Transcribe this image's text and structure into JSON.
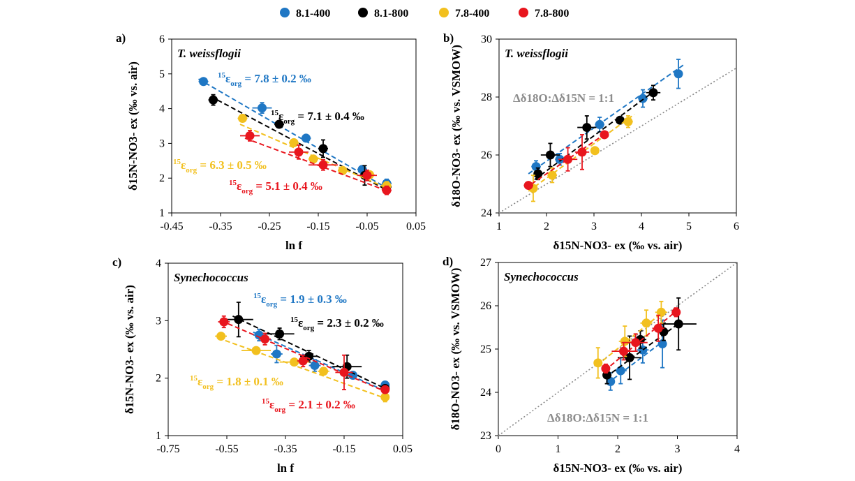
{
  "legend": [
    {
      "name": "8.1-400",
      "color": "#1f77c4"
    },
    {
      "name": "8.1-800",
      "color": "#000000"
    },
    {
      "name": "7.8-400",
      "color": "#f2c01e"
    },
    {
      "name": "7.8-800",
      "color": "#e8161e"
    }
  ],
  "chart_data": [
    {
      "panel": "a)",
      "title": "T. weissflogii",
      "type": "scatter",
      "xlabel": "ln f",
      "ylabel": "δ15N-NO3- ex (‰ vs. air)",
      "xlim": [
        -0.45,
        0.05
      ],
      "ylim": [
        1,
        6
      ],
      "xticks": [
        "-0.45",
        "-0.35",
        "-0.25",
        "-0.15",
        "-0.05",
        "0.05"
      ],
      "yticks": [
        "1",
        "2",
        "3",
        "4",
        "5",
        "6"
      ],
      "series": [
        {
          "name": "8.1-400",
          "color": "#1f77c4",
          "points": [
            [
              -0.385,
              4.78,
              0.01,
              0.05
            ],
            [
              -0.265,
              4.02,
              0.02,
              0.15
            ],
            [
              -0.175,
              3.15,
              0.01,
              0.05
            ],
            [
              -0.06,
              2.25,
              0.01,
              0.1
            ],
            [
              -0.01,
              1.85,
              0.01,
              0.12
            ]
          ],
          "fit": [
            [
              -0.395,
              4.85
            ],
            [
              -0.01,
              1.72
            ]
          ],
          "annotation": "7.8 ± 0.2 ‰"
        },
        {
          "name": "8.1-800",
          "color": "#000000",
          "points": [
            [
              -0.365,
              4.25,
              0.01,
              0.15
            ],
            [
              -0.23,
              3.55,
              0.01,
              0.05
            ],
            [
              -0.14,
              2.85,
              0.01,
              0.25
            ],
            [
              -0.055,
              2.08,
              0.01,
              0.28
            ],
            [
              -0.01,
              1.75,
              0.01,
              0.08
            ]
          ],
          "fit": [
            [
              -0.37,
              4.35
            ],
            [
              -0.01,
              1.66
            ]
          ],
          "annotation": "7.1 ± 0.4 ‰"
        },
        {
          "name": "7.8-400",
          "color": "#f2c01e",
          "points": [
            [
              -0.305,
              3.72,
              0.01,
              0.1
            ],
            [
              -0.2,
              3.02,
              0.01,
              0.05
            ],
            [
              -0.16,
              2.55,
              0.01,
              0.05
            ],
            [
              -0.1,
              2.22,
              0.01,
              0.05
            ],
            [
              -0.045,
              2.1,
              0.01,
              0.05
            ],
            [
              -0.01,
              1.78,
              0.01,
              0.12
            ]
          ],
          "fit": [
            [
              -0.31,
              3.55
            ],
            [
              -0.01,
              1.72
            ]
          ],
          "annotation": "6.3 ± 0.5 ‰"
        },
        {
          "name": "7.8-800",
          "color": "#e8161e",
          "points": [
            [
              -0.29,
              3.22,
              0.02,
              0.15
            ],
            [
              -0.19,
              2.75,
              0.02,
              0.2
            ],
            [
              -0.14,
              2.38,
              0.03,
              0.15
            ],
            [
              -0.05,
              2.08,
              0.02,
              0.15
            ],
            [
              -0.01,
              1.65,
              0.01,
              0.12
            ]
          ],
          "fit": [
            [
              -0.3,
              3.15
            ],
            [
              -0.01,
              1.64
            ]
          ],
          "annotation": "5.1 ± 0.4 ‰"
        }
      ]
    },
    {
      "panel": "b)",
      "title": "T. weissflogii",
      "type": "scatter",
      "xlabel": "δ15N-NO3- ex (‰ vs. air)",
      "ylabel": "δ18O-NO3- ex (‰ vs. VSMOW)",
      "xlim": [
        1,
        6
      ],
      "ylim": [
        24,
        30
      ],
      "xticks": [
        "1",
        "2",
        "3",
        "4",
        "5",
        "6"
      ],
      "yticks": [
        "24",
        "26",
        "28",
        "30"
      ],
      "oneone_label": "Δδ18O:Δδ15N = 1:1",
      "series": [
        {
          "name": "8.1-400",
          "color": "#1f77c4",
          "points": [
            [
              1.78,
              25.6,
              0.1,
              0.2
            ],
            [
              2.28,
              25.85,
              0.1,
              0.2
            ],
            [
              3.12,
              27.05,
              0.1,
              0.25
            ],
            [
              4.03,
              27.95,
              0.1,
              0.3
            ],
            [
              4.78,
              28.8,
              0.08,
              0.5
            ]
          ],
          "fit": [
            [
              1.62,
              25.35
            ],
            [
              4.88,
              29.1
            ]
          ]
        },
        {
          "name": "8.1-800",
          "color": "#000000",
          "points": [
            [
              1.82,
              25.35,
              0.05,
              0.2
            ],
            [
              2.08,
              26.0,
              0.2,
              0.4
            ],
            [
              2.85,
              26.95,
              0.2,
              0.4
            ],
            [
              3.55,
              27.2,
              0.05,
              0.1
            ],
            [
              4.25,
              28.15,
              0.15,
              0.25
            ]
          ],
          "fit": [
            [
              1.75,
              25.15
            ],
            [
              4.35,
              28.3
            ]
          ]
        },
        {
          "name": "7.8-400",
          "color": "#f2c01e",
          "points": [
            [
              1.72,
              24.85,
              0.05,
              0.45
            ],
            [
              2.12,
              25.3,
              0.1,
              0.25
            ],
            [
              3.02,
              26.15,
              0.05,
              0.1
            ],
            [
              3.72,
              27.15,
              0.1,
              0.2
            ]
          ],
          "fit": [
            [
              1.62,
              24.75
            ],
            [
              3.85,
              27.4
            ]
          ]
        },
        {
          "name": "7.8-800",
          "color": "#e8161e",
          "points": [
            [
              1.62,
              24.95,
              0.1,
              0.1
            ],
            [
              2.45,
              25.85,
              0.2,
              0.4
            ],
            [
              2.75,
              26.1,
              0.15,
              0.6
            ],
            [
              3.22,
              26.7,
              0.05,
              0.1
            ]
          ],
          "fit": [
            [
              1.55,
              24.85
            ],
            [
              3.3,
              26.8
            ]
          ]
        }
      ]
    },
    {
      "panel": "c)",
      "title": "Synechococcus",
      "type": "scatter",
      "xlabel": "ln f",
      "ylabel": "δ15N-NO3- ex (‰ vs. air)",
      "xlim": [
        -0.75,
        0.05
      ],
      "ylim": [
        1,
        4
      ],
      "xticks": [
        "-0.75",
        "-0.55",
        "-0.35",
        "-0.15",
        "0.05"
      ],
      "yticks": [
        "1",
        "2",
        "3",
        "4"
      ],
      "series": [
        {
          "name": "8.1-400",
          "color": "#1f77c4",
          "points": [
            [
              -0.44,
              2.75,
              0.02,
              0.1
            ],
            [
              -0.38,
              2.42,
              0.02,
              0.15
            ],
            [
              -0.25,
              2.22,
              0.02,
              0.1
            ],
            [
              -0.12,
              2.05,
              0.02,
              0.05
            ],
            [
              -0.01,
              1.88,
              0.01,
              0.05
            ]
          ],
          "fit": [
            [
              -0.46,
              2.8
            ],
            [
              -0.01,
              1.78
            ]
          ],
          "annotation": "1.9 ± 0.3 ‰"
        },
        {
          "name": "8.1-800",
          "color": "#000000",
          "points": [
            [
              -0.51,
              3.02,
              0.05,
              0.3
            ],
            [
              -0.37,
              2.77,
              0.05,
              0.1
            ],
            [
              -0.27,
              2.38,
              0.03,
              0.1
            ],
            [
              -0.14,
              2.2,
              0.05,
              0.2
            ],
            [
              -0.01,
              1.82,
              0.01,
              0.05
            ]
          ],
          "fit": [
            [
              -0.53,
              3.08
            ],
            [
              -0.01,
              1.82
            ]
          ],
          "annotation": "2.3 ± 0.2 ‰"
        },
        {
          "name": "7.8-400",
          "color": "#f2c01e",
          "points": [
            [
              -0.57,
              2.73,
              0.02,
              0.05
            ],
            [
              -0.45,
              2.48,
              0.05,
              0.05
            ],
            [
              -0.32,
              2.28,
              0.05,
              0.05
            ],
            [
              -0.22,
              2.12,
              0.02,
              0.05
            ],
            [
              -0.01,
              1.67,
              0.01,
              0.08
            ]
          ],
          "fit": [
            [
              -0.58,
              2.7
            ],
            [
              -0.01,
              1.65
            ]
          ],
          "annotation": "1.8 ± 0.1 ‰"
        },
        {
          "name": "7.8-800",
          "color": "#e8161e",
          "points": [
            [
              -0.56,
              2.98,
              0.02,
              0.1
            ],
            [
              -0.42,
              2.68,
              0.02,
              0.1
            ],
            [
              -0.29,
              2.3,
              0.02,
              0.1
            ],
            [
              -0.15,
              2.1,
              0.03,
              0.3
            ],
            [
              -0.01,
              1.8,
              0.01,
              0.05
            ]
          ],
          "fit": [
            [
              -0.57,
              3.0
            ],
            [
              -0.01,
              1.77
            ]
          ],
          "annotation": "2.1 ± 0.2 ‰"
        }
      ]
    },
    {
      "panel": "d)",
      "title": "Synechococcus",
      "type": "scatter",
      "xlabel": "δ15N-NO3- ex (‰ vs. air)",
      "ylabel": "δ18O-NO3- ex (‰ vs. VSMOW)",
      "xlim": [
        0,
        4
      ],
      "ylim": [
        23,
        27
      ],
      "xticks": [
        "0",
        "1",
        "2",
        "3",
        "4"
      ],
      "yticks": [
        "23",
        "24",
        "25",
        "26",
        "27"
      ],
      "oneone_label": "Δδ18O:Δδ15N = 1:1",
      "series": [
        {
          "name": "8.1-400",
          "color": "#1f77c4",
          "points": [
            [
              1.88,
              24.25,
              0.05,
              0.2
            ],
            [
              2.05,
              24.5,
              0.1,
              0.3
            ],
            [
              2.42,
              24.98,
              0.1,
              0.3
            ],
            [
              2.75,
              25.12,
              0.05,
              0.55
            ]
          ],
          "fit": [
            [
              1.82,
              24.2
            ],
            [
              2.78,
              25.2
            ]
          ]
        },
        {
          "name": "8.1-800",
          "color": "#000000",
          "points": [
            [
              1.82,
              24.4,
              0.05,
              0.2
            ],
            [
              2.2,
              24.8,
              0.2,
              0.5
            ],
            [
              2.38,
              25.22,
              0.1,
              0.2
            ],
            [
              2.77,
              25.4,
              0.05,
              0.2
            ],
            [
              3.02,
              25.58,
              0.3,
              0.6
            ]
          ],
          "fit": [
            [
              1.8,
              24.35
            ],
            [
              3.05,
              25.62
            ]
          ]
        },
        {
          "name": "7.8-400",
          "color": "#f2c01e",
          "points": [
            [
              1.67,
              24.68,
              0.05,
              0.35
            ],
            [
              2.12,
              25.18,
              0.1,
              0.35
            ],
            [
              2.48,
              25.6,
              0.1,
              0.3
            ],
            [
              2.73,
              25.85,
              0.1,
              0.25
            ]
          ],
          "fit": [
            [
              1.65,
              24.62
            ],
            [
              2.78,
              25.88
            ]
          ]
        },
        {
          "name": "7.8-800",
          "color": "#e8161e",
          "points": [
            [
              1.8,
              24.55,
              0.05,
              0.1
            ],
            [
              2.1,
              24.95,
              0.2,
              0.2
            ],
            [
              2.3,
              25.15,
              0.2,
              0.2
            ],
            [
              2.68,
              25.48,
              0.1,
              0.3
            ],
            [
              2.98,
              25.85,
              0.05,
              0.1
            ]
          ],
          "fit": [
            [
              1.78,
              24.5
            ],
            [
              3.0,
              25.9
            ]
          ]
        }
      ]
    }
  ]
}
